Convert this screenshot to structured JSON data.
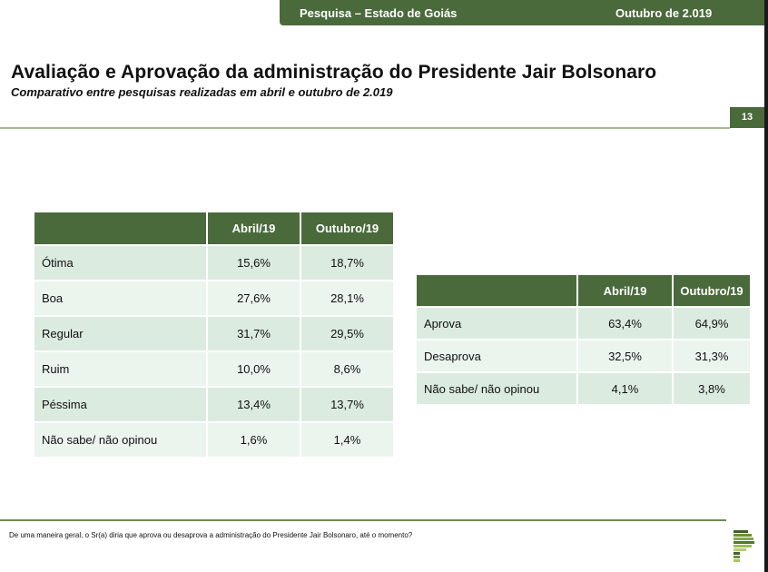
{
  "header": {
    "survey_label": "Pesquisa – Estado de Goiás",
    "date_label": "Outubro de 2.019"
  },
  "title": "Avaliação e Aprovação da administração do Presidente Jair Bolsonaro",
  "subtitle": "Comparativo entre pesquisas realizadas em abril e outubro de 2.019",
  "page_number": "13",
  "evaluation_table": {
    "columns": [
      "",
      "Abril/19",
      "Outubro/19"
    ],
    "rows": [
      {
        "label": "Ótima",
        "abril": "15,6%",
        "outubro": "18,7%"
      },
      {
        "label": "Boa",
        "abril": "27,6%",
        "outubro": "28,1%"
      },
      {
        "label": "Regular",
        "abril": "31,7%",
        "outubro": "29,5%"
      },
      {
        "label": "Ruim",
        "abril": "10,0%",
        "outubro": "8,6%"
      },
      {
        "label": "Péssima",
        "abril": "13,4%",
        "outubro": "13,7%"
      },
      {
        "label": "Não sabe/ não opinou",
        "abril": "1,6%",
        "outubro": "1,4%"
      }
    ]
  },
  "approval_table": {
    "columns": [
      "",
      "Abril/19",
      "Outubro/19"
    ],
    "rows": [
      {
        "label": "Aprova",
        "abril": "63,4%",
        "outubro": "64,9%"
      },
      {
        "label": "Desaprova",
        "abril": "32,5%",
        "outubro": "31,3%"
      },
      {
        "label": "Não sabe/ não opinou",
        "abril": "4,1%",
        "outubro": "3,8%"
      }
    ]
  },
  "footnote": "De uma maneira geral, o Sr(a) diria que aprova ou desaprova a administração do Presidente Jair Bolsonaro, até o momento?",
  "colors": {
    "brand_green": "#4a6a3b",
    "row_dark": "#dcebe0",
    "row_light": "#ecf4ee"
  }
}
